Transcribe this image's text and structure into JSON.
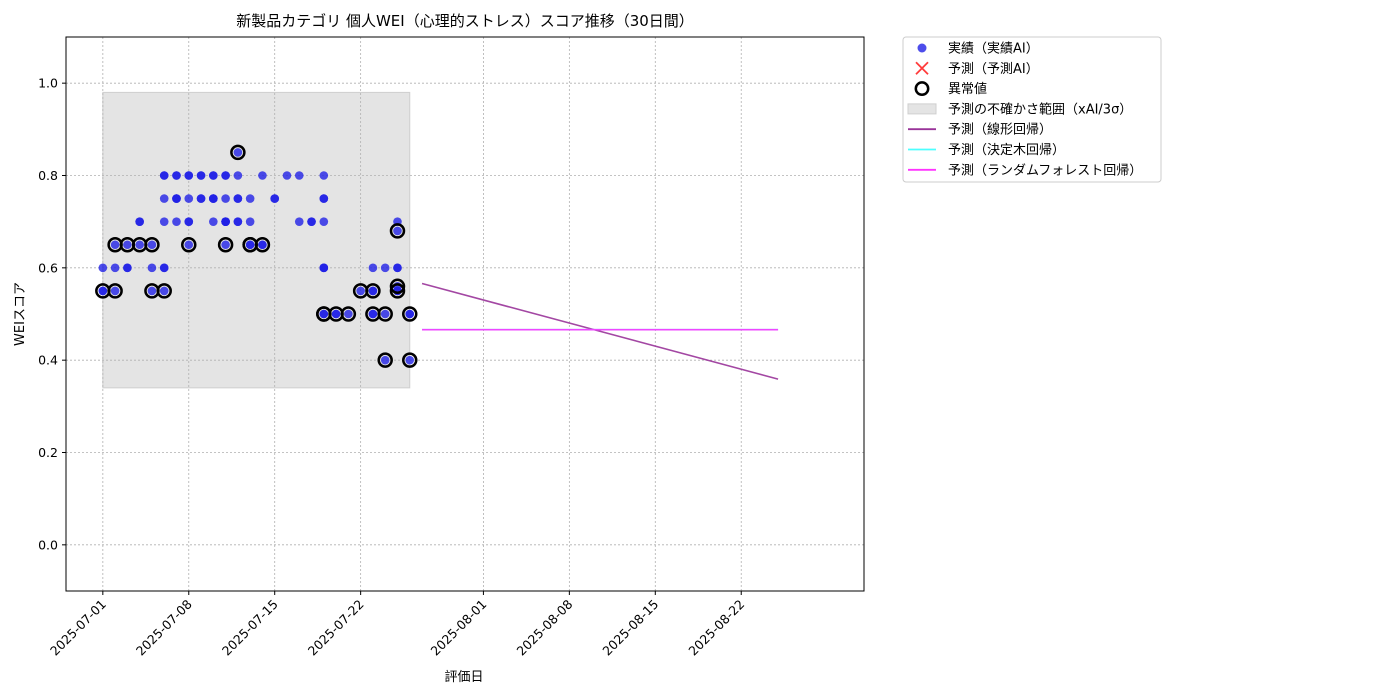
{
  "chart_data": {
    "type": "scatter",
    "title": "新製品カテゴリ 個人WEI（心理的ストレス）スコア推移（30日間）",
    "xlabel": "評価日",
    "ylabel": "WEIスコア",
    "xlim": [
      "2025-06-28",
      "2025-09-01"
    ],
    "ylim": [
      -0.1,
      1.1
    ],
    "yticks": [
      0.0,
      0.2,
      0.4,
      0.6,
      0.8,
      1.0
    ],
    "ytick_labels": [
      "0.0",
      "0.2",
      "0.4",
      "0.6",
      "0.8",
      "1.0"
    ],
    "xticks": [
      "2025-07-01",
      "2025-07-08",
      "2025-07-15",
      "2025-07-22",
      "2025-08-01",
      "2025-08-08",
      "2025-08-15",
      "2025-08-22"
    ],
    "grid": true,
    "legend_position": "outside-top-right",
    "colors": {
      "actual": "#2020e6",
      "predicted_marker": "#ff3b3b",
      "anomaly": "#000000",
      "band": "#e4e4e4",
      "linear": "#993399",
      "tree": "#4dffff",
      "forest": "#ff33ff"
    },
    "uncertainty_band": {
      "x": [
        "2025-07-01",
        "2025-07-26"
      ],
      "y": [
        0.34,
        0.98
      ]
    },
    "series": [
      {
        "name": "実績（実績AI）",
        "kind": "scatter",
        "points": [
          [
            "2025-07-01",
            0.55
          ],
          [
            "2025-07-01",
            0.6
          ],
          [
            "2025-07-01",
            0.55
          ],
          [
            "2025-07-02",
            0.6
          ],
          [
            "2025-07-02",
            0.55
          ],
          [
            "2025-07-02",
            0.65
          ],
          [
            "2025-07-03",
            0.65
          ],
          [
            "2025-07-03",
            0.6
          ],
          [
            "2025-07-03",
            0.6
          ],
          [
            "2025-07-04",
            0.65
          ],
          [
            "2025-07-04",
            0.7
          ],
          [
            "2025-07-04",
            0.7
          ],
          [
            "2025-07-05",
            0.6
          ],
          [
            "2025-07-05",
            0.55
          ],
          [
            "2025-07-05",
            0.65
          ],
          [
            "2025-07-06",
            0.6
          ],
          [
            "2025-07-06",
            0.55
          ],
          [
            "2025-07-06",
            0.6
          ],
          [
            "2025-07-06",
            0.8
          ],
          [
            "2025-07-06",
            0.75
          ],
          [
            "2025-07-06",
            0.7
          ],
          [
            "2025-07-06",
            0.8
          ],
          [
            "2025-07-07",
            0.75
          ],
          [
            "2025-07-07",
            0.75
          ],
          [
            "2025-07-07",
            0.8
          ],
          [
            "2025-07-07",
            0.75
          ],
          [
            "2025-07-07",
            0.7
          ],
          [
            "2025-07-07",
            0.8
          ],
          [
            "2025-07-08",
            0.7
          ],
          [
            "2025-07-08",
            0.65
          ],
          [
            "2025-07-08",
            0.7
          ],
          [
            "2025-07-08",
            0.75
          ],
          [
            "2025-07-08",
            0.8
          ],
          [
            "2025-07-08",
            0.8
          ],
          [
            "2025-07-09",
            0.75
          ],
          [
            "2025-07-09",
            0.8
          ],
          [
            "2025-07-09",
            0.75
          ],
          [
            "2025-07-09",
            0.8
          ],
          [
            "2025-07-10",
            0.8
          ],
          [
            "2025-07-10",
            0.75
          ],
          [
            "2025-07-10",
            0.75
          ],
          [
            "2025-07-10",
            0.7
          ],
          [
            "2025-07-10",
            0.8
          ],
          [
            "2025-07-10",
            0.75
          ],
          [
            "2025-07-11",
            0.8
          ],
          [
            "2025-07-11",
            0.8
          ],
          [
            "2025-07-11",
            0.7
          ],
          [
            "2025-07-11",
            0.65
          ],
          [
            "2025-07-11",
            0.7
          ],
          [
            "2025-07-11",
            0.7
          ],
          [
            "2025-07-11",
            0.75
          ],
          [
            "2025-07-11",
            0.7
          ],
          [
            "2025-07-12",
            0.8
          ],
          [
            "2025-07-12",
            0.7
          ],
          [
            "2025-07-12",
            0.85
          ],
          [
            "2025-07-12",
            0.7
          ],
          [
            "2025-07-12",
            0.75
          ],
          [
            "2025-07-12",
            0.75
          ],
          [
            "2025-07-13",
            0.7
          ],
          [
            "2025-07-13",
            0.65
          ],
          [
            "2025-07-13",
            0.65
          ],
          [
            "2025-07-13",
            0.75
          ],
          [
            "2025-07-14",
            0.65
          ],
          [
            "2025-07-14",
            0.65
          ],
          [
            "2025-07-14",
            0.8
          ],
          [
            "2025-07-15",
            0.75
          ],
          [
            "2025-07-15",
            0.75
          ],
          [
            "2025-07-16",
            0.8
          ],
          [
            "2025-07-17",
            0.8
          ],
          [
            "2025-07-17",
            0.7
          ],
          [
            "2025-07-18",
            0.7
          ],
          [
            "2025-07-18",
            0.7
          ],
          [
            "2025-07-19",
            0.8
          ],
          [
            "2025-07-19",
            0.75
          ],
          [
            "2025-07-19",
            0.7
          ],
          [
            "2025-07-19",
            0.75
          ],
          [
            "2025-07-19",
            0.6
          ],
          [
            "2025-07-19",
            0.5
          ],
          [
            "2025-07-19",
            0.6
          ],
          [
            "2025-07-19",
            0.5
          ],
          [
            "2025-07-19",
            0.6
          ],
          [
            "2025-07-20",
            0.5
          ],
          [
            "2025-07-20",
            0.5
          ],
          [
            "2025-07-21",
            0.5
          ],
          [
            "2025-07-22",
            0.55
          ],
          [
            "2025-07-23",
            0.55
          ],
          [
            "2025-07-23",
            0.6
          ],
          [
            "2025-07-23",
            0.5
          ],
          [
            "2025-07-23",
            0.55
          ],
          [
            "2025-07-23",
            0.5
          ],
          [
            "2025-07-24",
            0.4
          ],
          [
            "2025-07-24",
            0.6
          ],
          [
            "2025-07-24",
            0.5
          ],
          [
            "2025-07-25",
            0.7
          ],
          [
            "2025-07-25",
            0.68
          ],
          [
            "2025-07-25",
            0.6
          ],
          [
            "2025-07-25",
            0.55
          ],
          [
            "2025-07-25",
            0.55
          ],
          [
            "2025-07-25",
            0.56
          ],
          [
            "2025-07-25",
            0.6
          ],
          [
            "2025-07-26",
            0.5
          ],
          [
            "2025-07-26",
            0.5
          ],
          [
            "2025-07-26",
            0.4
          ]
        ]
      },
      {
        "name": "予測（予測AI）",
        "kind": "scatter",
        "points": []
      },
      {
        "name": "異常値",
        "kind": "scatter",
        "points": [
          [
            "2025-07-01",
            0.55
          ],
          [
            "2025-07-02",
            0.55
          ],
          [
            "2025-07-02",
            0.65
          ],
          [
            "2025-07-03",
            0.65
          ],
          [
            "2025-07-04",
            0.65
          ],
          [
            "2025-07-05",
            0.65
          ],
          [
            "2025-07-05",
            0.55
          ],
          [
            "2025-07-06",
            0.55
          ],
          [
            "2025-07-08",
            0.65
          ],
          [
            "2025-07-11",
            0.65
          ],
          [
            "2025-07-12",
            0.85
          ],
          [
            "2025-07-13",
            0.65
          ],
          [
            "2025-07-13",
            0.65
          ],
          [
            "2025-07-14",
            0.65
          ],
          [
            "2025-07-19",
            0.5
          ],
          [
            "2025-07-19",
            0.5
          ],
          [
            "2025-07-20",
            0.5
          ],
          [
            "2025-07-21",
            0.5
          ],
          [
            "2025-07-22",
            0.55
          ],
          [
            "2025-07-23",
            0.5
          ],
          [
            "2025-07-23",
            0.55
          ],
          [
            "2025-07-24",
            0.5
          ],
          [
            "2025-07-24",
            0.4
          ],
          [
            "2025-07-25",
            0.68
          ],
          [
            "2025-07-25",
            0.55
          ],
          [
            "2025-07-25",
            0.56
          ],
          [
            "2025-07-26",
            0.5
          ],
          [
            "2025-07-26",
            0.4
          ]
        ]
      },
      {
        "name": "予測の不確かさ範囲（xAI/3σ）",
        "kind": "band"
      },
      {
        "name": "予測（線形回帰）",
        "kind": "line",
        "points": [
          [
            "2025-07-27",
            0.566
          ],
          [
            "2025-08-25",
            0.359
          ]
        ]
      },
      {
        "name": "予測（決定木回帰）",
        "kind": "line",
        "points": [
          [
            "2025-07-27",
            0.466
          ],
          [
            "2025-08-25",
            0.466
          ]
        ]
      },
      {
        "name": "予測（ランダムフォレスト回帰）",
        "kind": "line",
        "points": [
          [
            "2025-07-27",
            0.466
          ],
          [
            "2025-08-25",
            0.466
          ]
        ]
      }
    ]
  }
}
